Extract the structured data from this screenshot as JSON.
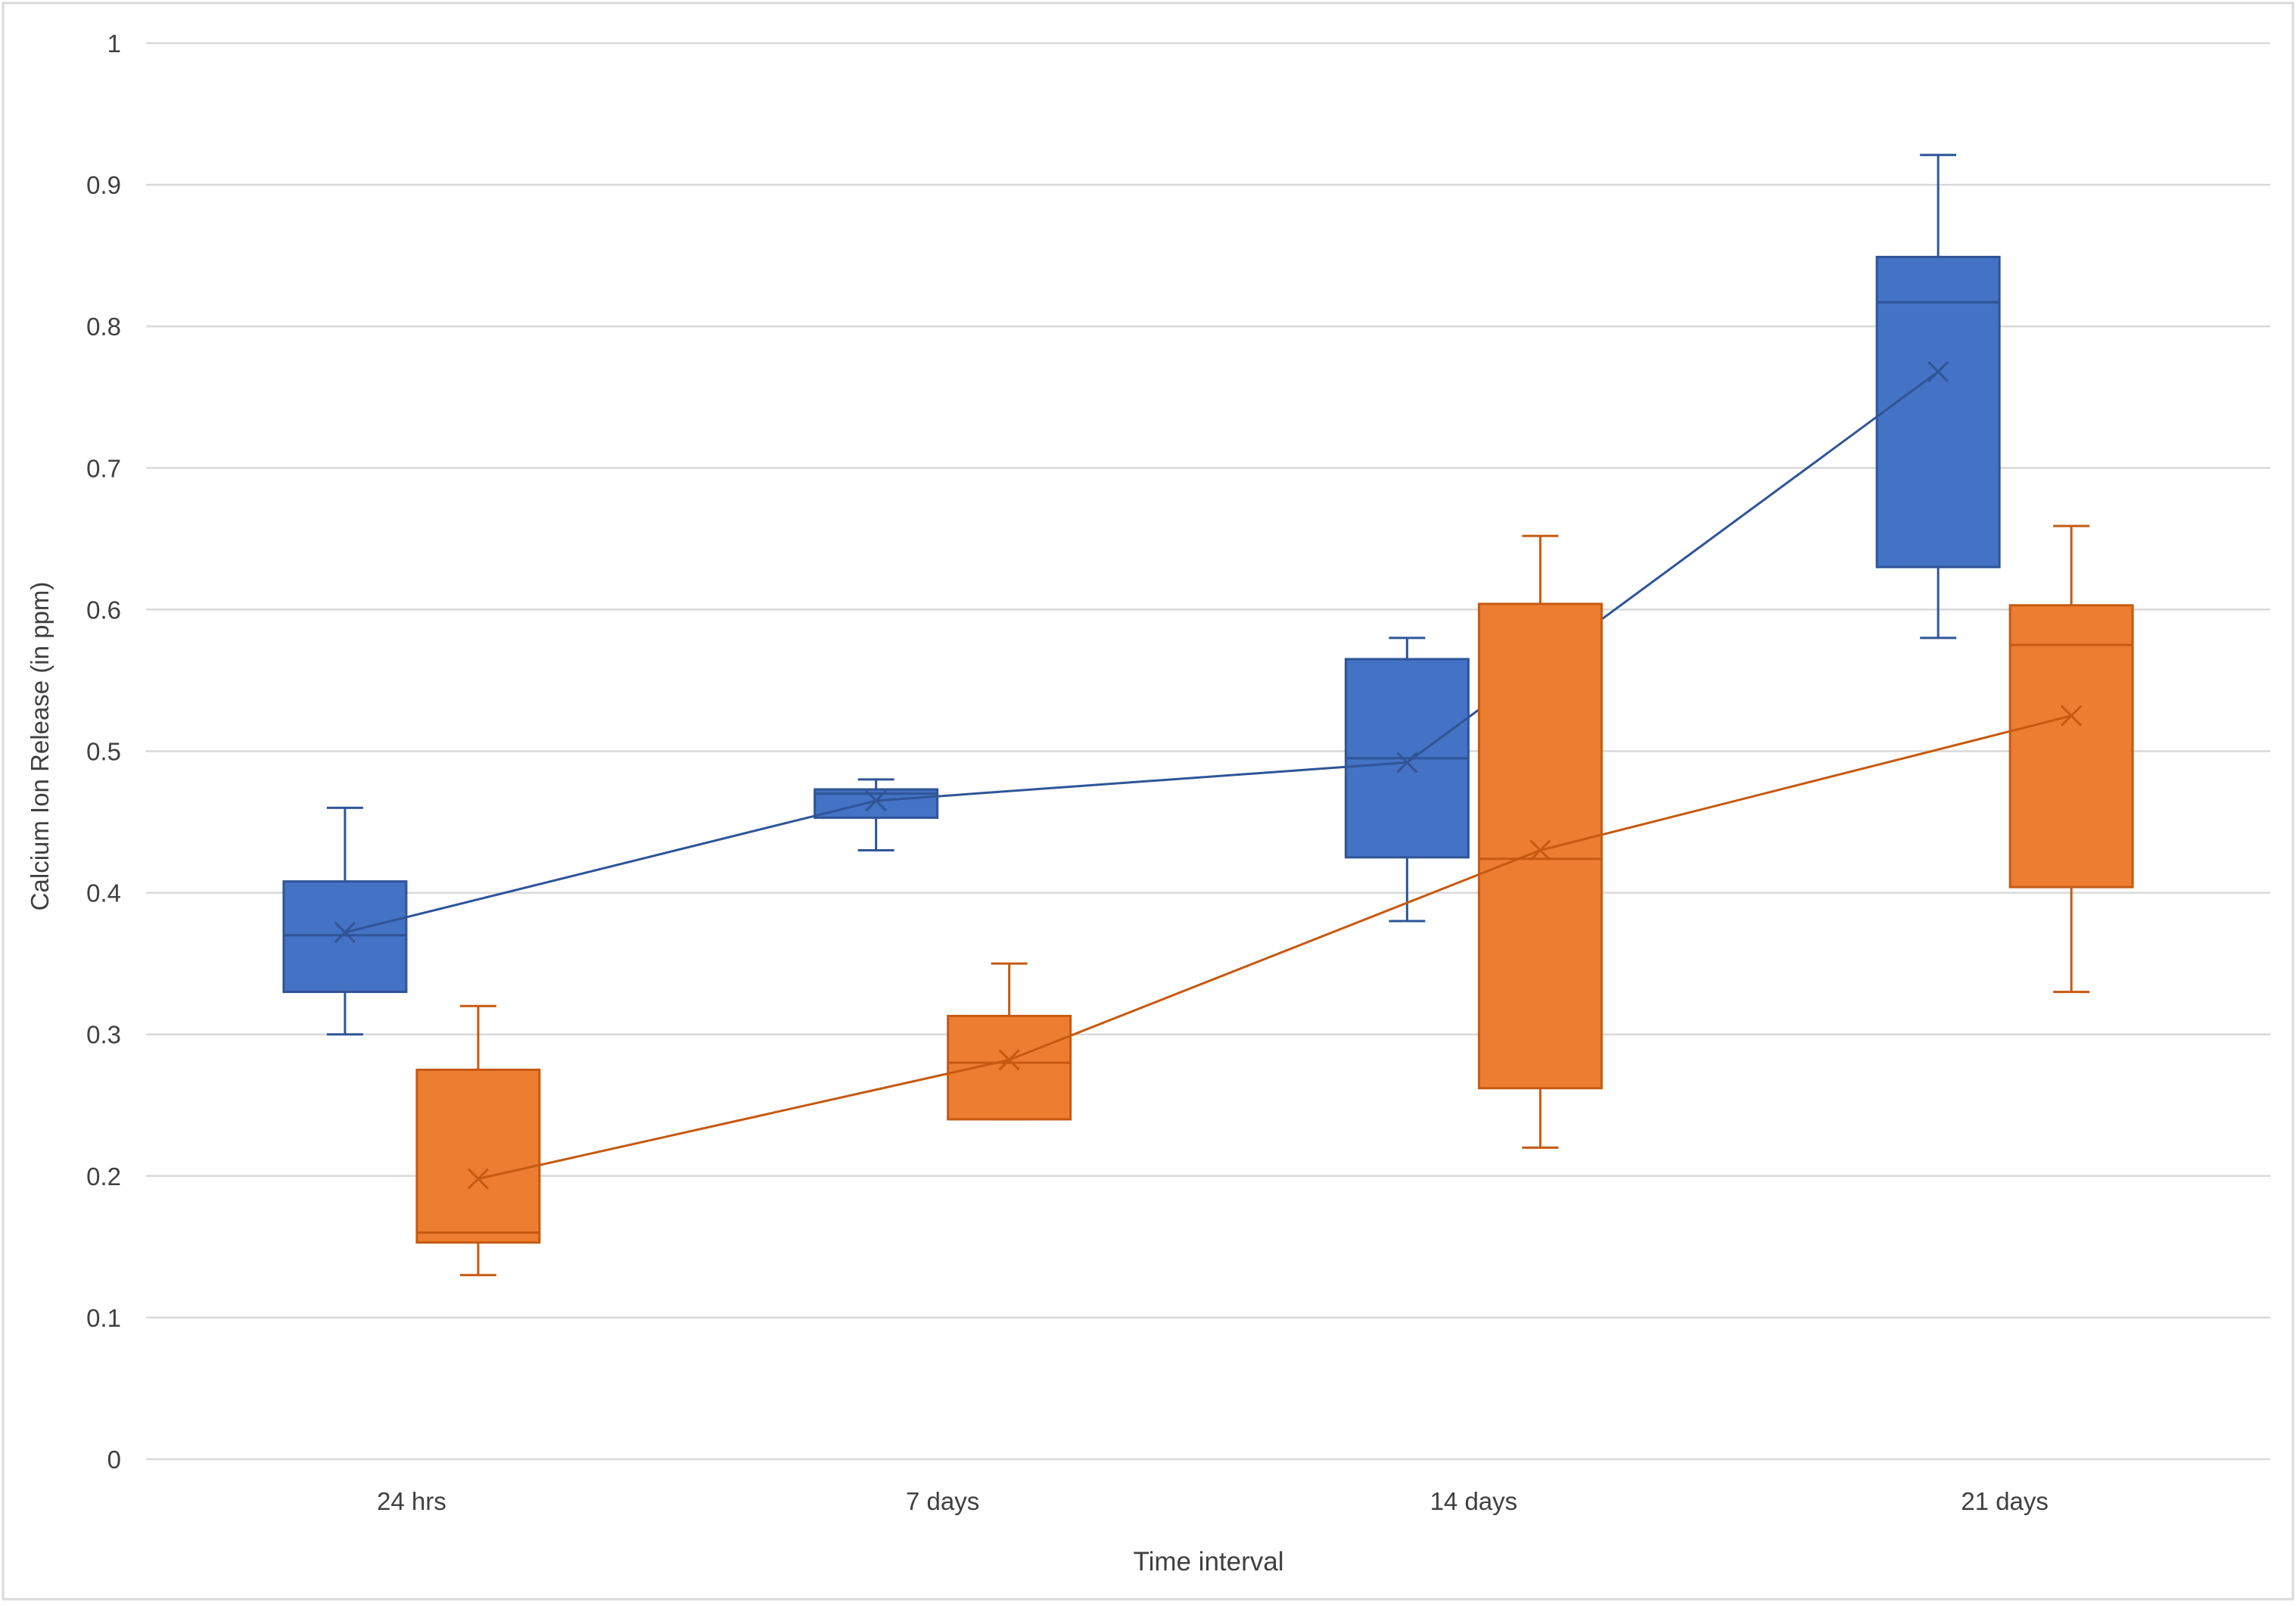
{
  "chart_data": {
    "type": "box",
    "xlabel": "Time interval",
    "ylabel": "Calcium Ion Release (in ppm)",
    "ylim": [
      0,
      1
    ],
    "yticks": [
      "0",
      "0.1",
      "0.2",
      "0.3",
      "0.4",
      "0.5",
      "0.6",
      "0.7",
      "0.8",
      "0.9",
      "1"
    ],
    "grid": true,
    "categories": [
      "24 hrs",
      "7 days",
      "14 days",
      "21 days"
    ],
    "series": [
      {
        "color": "#4472C4",
        "mean_line": true,
        "boxes": [
          {
            "min": 0.3,
            "q1": 0.33,
            "median": 0.37,
            "q3": 0.408,
            "max": 0.46,
            "mean": 0.372
          },
          {
            "min": 0.43,
            "q1": 0.453,
            "median": 0.47,
            "q3": 0.473,
            "max": 0.48,
            "mean": 0.465
          },
          {
            "min": 0.38,
            "q1": 0.425,
            "median": 0.495,
            "q3": 0.565,
            "max": 0.58,
            "mean": 0.492
          },
          {
            "min": 0.58,
            "q1": 0.63,
            "median": 0.817,
            "q3": 0.849,
            "max": 0.921,
            "mean": 0.768
          }
        ]
      },
      {
        "color": "#ED7D31",
        "mean_line": true,
        "boxes": [
          {
            "min": 0.13,
            "q1": 0.153,
            "median": 0.16,
            "q3": 0.275,
            "max": 0.32,
            "mean": 0.198
          },
          {
            "min": 0.24,
            "q1": 0.24,
            "median": 0.28,
            "q3": 0.313,
            "max": 0.35,
            "mean": 0.282
          },
          {
            "min": 0.22,
            "q1": 0.262,
            "median": 0.424,
            "q3": 0.604,
            "max": 0.652,
            "mean": 0.43
          },
          {
            "min": 0.33,
            "q1": 0.404,
            "median": 0.575,
            "q3": 0.603,
            "max": 0.659,
            "mean": 0.525
          }
        ]
      }
    ]
  }
}
